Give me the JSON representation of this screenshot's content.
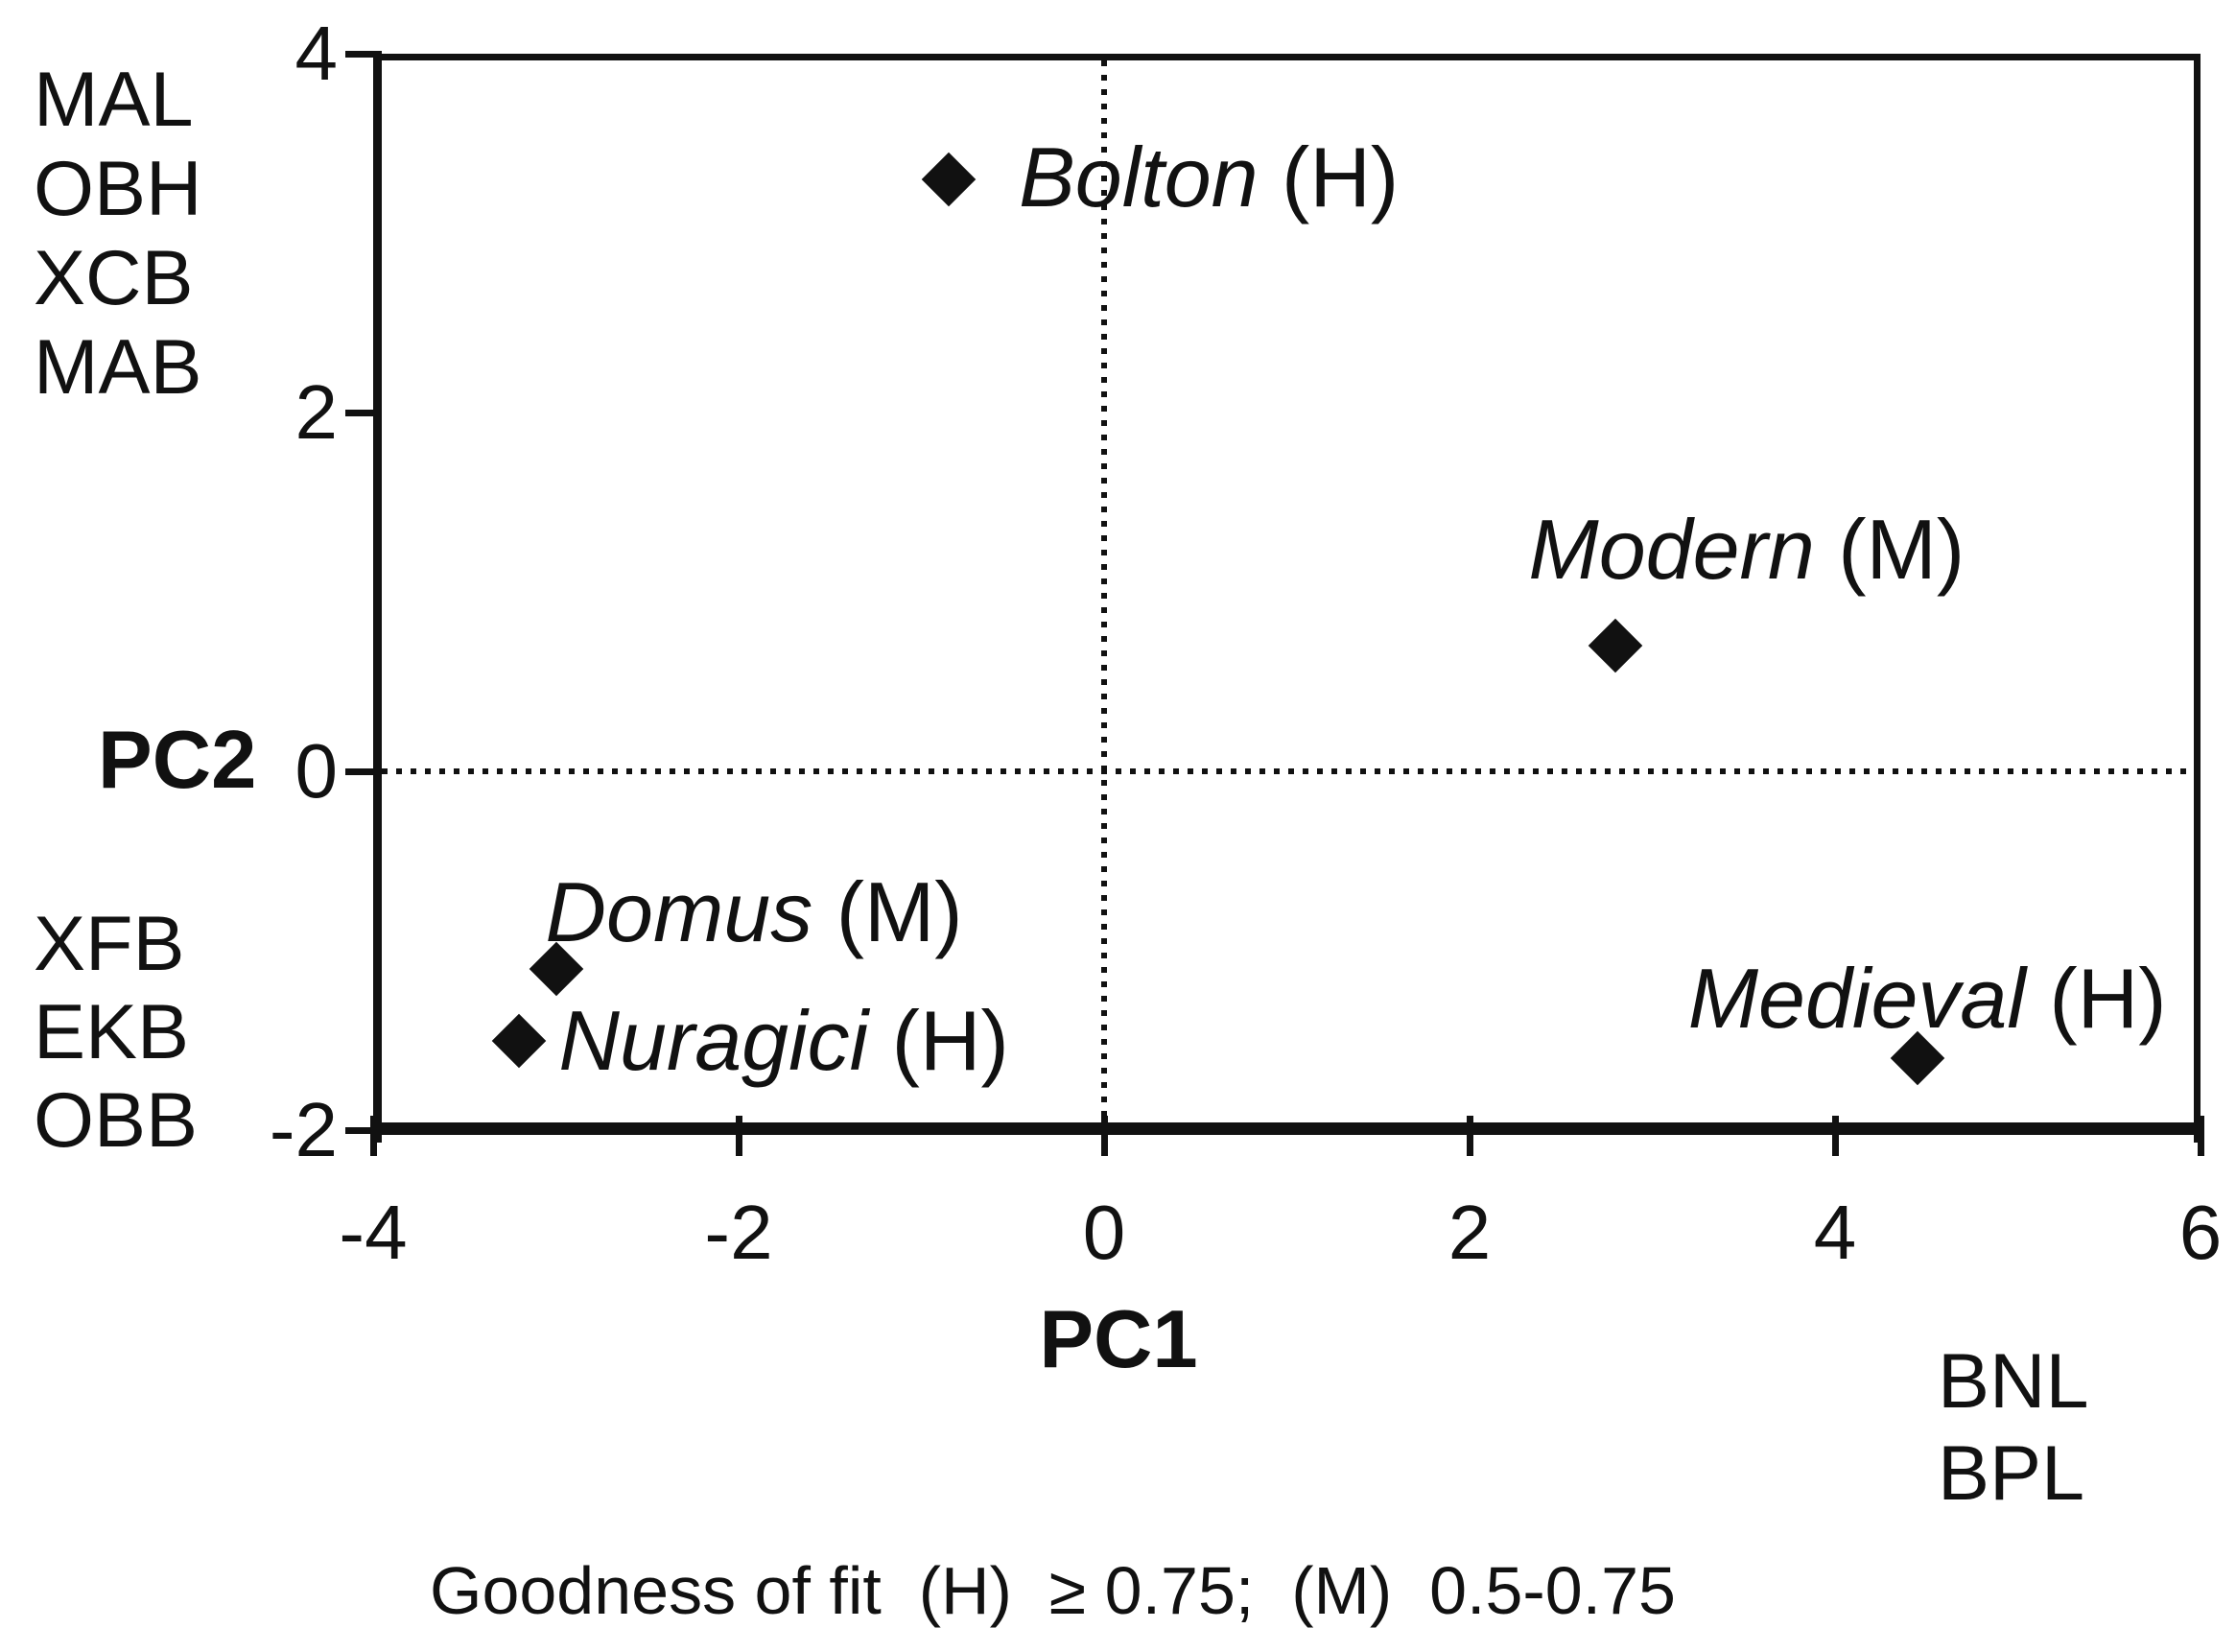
{
  "figure": {
    "background": "#ffffff",
    "ink_color": "#111111"
  },
  "chart_data": {
    "type": "scatter",
    "title": "",
    "xlabel": "PC1",
    "ylabel": "PC2",
    "xlim": [
      -4,
      6
    ],
    "ylim": [
      -2,
      4
    ],
    "xticks": [
      "-4",
      "-2",
      "0",
      "2",
      "4",
      "6"
    ],
    "yticks": [
      "4",
      "2",
      "0",
      "-2"
    ],
    "grid": "off",
    "reference_lines": {
      "x_zero": true,
      "y_zero": true,
      "style": "dotted"
    },
    "marker": "filled-diamond",
    "legend_position": "none",
    "series": [
      {
        "name": "Bolton",
        "fit": "H",
        "x": -0.85,
        "y": 3.3,
        "label_dx": 73,
        "label_dy": -55
      },
      {
        "name": "Modern",
        "fit": "M",
        "x": 2.8,
        "y": 0.7,
        "label_dx": -91,
        "label_dy": -153
      },
      {
        "name": "Domus",
        "fit": "M",
        "x": -3.0,
        "y": -1.1,
        "label_dx": -11,
        "label_dy": -112
      },
      {
        "name": "Nuragici",
        "fit": "H",
        "x": -3.2,
        "y": -1.5,
        "label_dx": 41,
        "label_dy": -53
      },
      {
        "name": "Medieval",
        "fit": "H",
        "x": 4.45,
        "y": -1.6,
        "label_dx": -239,
        "label_dy": -115
      }
    ],
    "loading_labels": {
      "pc2_positive": [
        "MAL",
        "OBH",
        "XCB",
        "MAB"
      ],
      "pc2_negative": [
        "XFB",
        "EKB",
        "OBB"
      ],
      "pc1_positive": [
        "BNL",
        "BPL"
      ]
    },
    "caption": "Goodness of fit  (H)  ≥ 0.75;  (M)  0.5-0.75"
  }
}
